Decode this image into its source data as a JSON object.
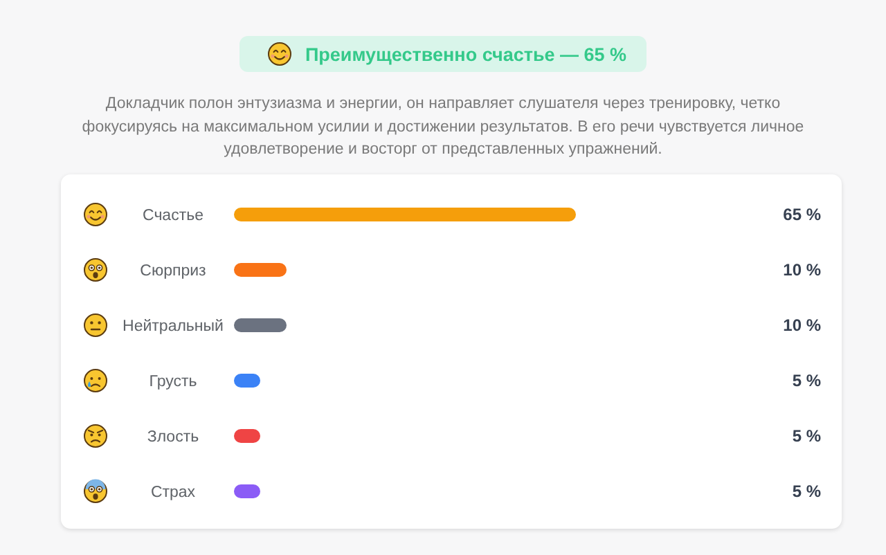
{
  "chart_data": {
    "type": "bar",
    "orientation": "horizontal",
    "title": "Преимущественно счастье — 65 %",
    "subtitle": "Докладчик полон энтузиазма и энергии, он направляет слушателя через тренировку, четко фокусируясь на максимальном усилии и достижении результатов. В его речи чувствуется личное удовлетворение и восторг от представленных упражнений.",
    "categories": [
      "Счастье",
      "Сюрприз",
      "Нейтральный",
      "Грусть",
      "Злость",
      "Страх"
    ],
    "values": [
      65,
      10,
      10,
      5,
      5,
      5
    ],
    "colors": [
      "#f59e0b",
      "#f97316",
      "#6b7280",
      "#3b82f6",
      "#ef4444",
      "#8b5cf6"
    ],
    "value_labels": [
      "65 %",
      "10 %",
      "10 %",
      "5 %",
      "5 %",
      "5 %"
    ]
  }
}
